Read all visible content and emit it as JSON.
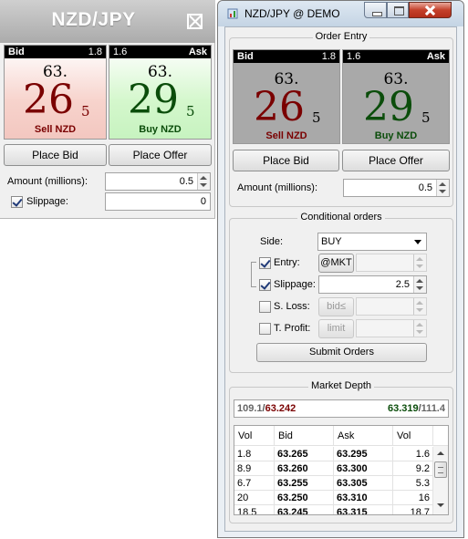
{
  "mini": {
    "title": "NZD/JPY",
    "bid": {
      "header": "Bid",
      "spread": "1.8",
      "prefix": "63.",
      "big": "26",
      "pip": "5",
      "action": "Sell NZD"
    },
    "ask": {
      "header": "Ask",
      "spread": "1.6",
      "prefix": "63.",
      "big": "29",
      "pip": "5",
      "action": "Buy NZD"
    },
    "place_bid": "Place Bid",
    "place_offer": "Place Offer",
    "amount_label": "Amount (millions):",
    "amount_value": "0.5",
    "slippage_label": "Slippage:",
    "slippage_value": "0",
    "slippage_checked": true
  },
  "window": {
    "title": "NZD/JPY @ DEMO",
    "order_entry": {
      "title": "Order Entry",
      "bid": {
        "header": "Bid",
        "spread": "1.8",
        "prefix": "63.",
        "big": "26",
        "pip": "5",
        "action": "Sell NZD"
      },
      "ask": {
        "header": "Ask",
        "spread": "1.6",
        "prefix": "63.",
        "big": "29",
        "pip": "5",
        "action": "Buy NZD"
      },
      "place_bid": "Place Bid",
      "place_offer": "Place Offer",
      "amount_label": "Amount (millions):",
      "amount_value": "0.5"
    },
    "conditional": {
      "title": "Conditional orders",
      "side_label": "Side:",
      "side_value": "BUY",
      "entry_label": "Entry:",
      "entry_button": "@MKT",
      "entry_checked": true,
      "slippage_label": "Slippage:",
      "slippage_value": "2.5",
      "slippage_checked": true,
      "sloss_label": "S. Loss:",
      "sloss_button": "bid≤",
      "sloss_checked": false,
      "tprofit_label": "T. Profit:",
      "tprofit_button": "limit",
      "tprofit_checked": false,
      "submit": "Submit Orders"
    },
    "depth": {
      "title": "Market Depth",
      "bid_volume": "109.1",
      "bid_price": "63.242",
      "ask_price": "63.319",
      "ask_volume": "111.4",
      "headers": [
        "Vol",
        "Bid",
        "Ask",
        "Vol"
      ],
      "rows": [
        [
          "1.8",
          "63.265",
          "63.295",
          "1.6"
        ],
        [
          "8.9",
          "63.260",
          "63.300",
          "9.2"
        ],
        [
          "6.7",
          "63.255",
          "63.305",
          "5.3"
        ],
        [
          "20",
          "63.250",
          "63.310",
          "16"
        ],
        [
          "18.5",
          "63.245",
          "63.315",
          "18.7"
        ]
      ]
    }
  },
  "colors": {
    "bid_text": "#7a0000",
    "ask_text": "#0b4d0b",
    "titlebar": "#c4d4e4"
  }
}
